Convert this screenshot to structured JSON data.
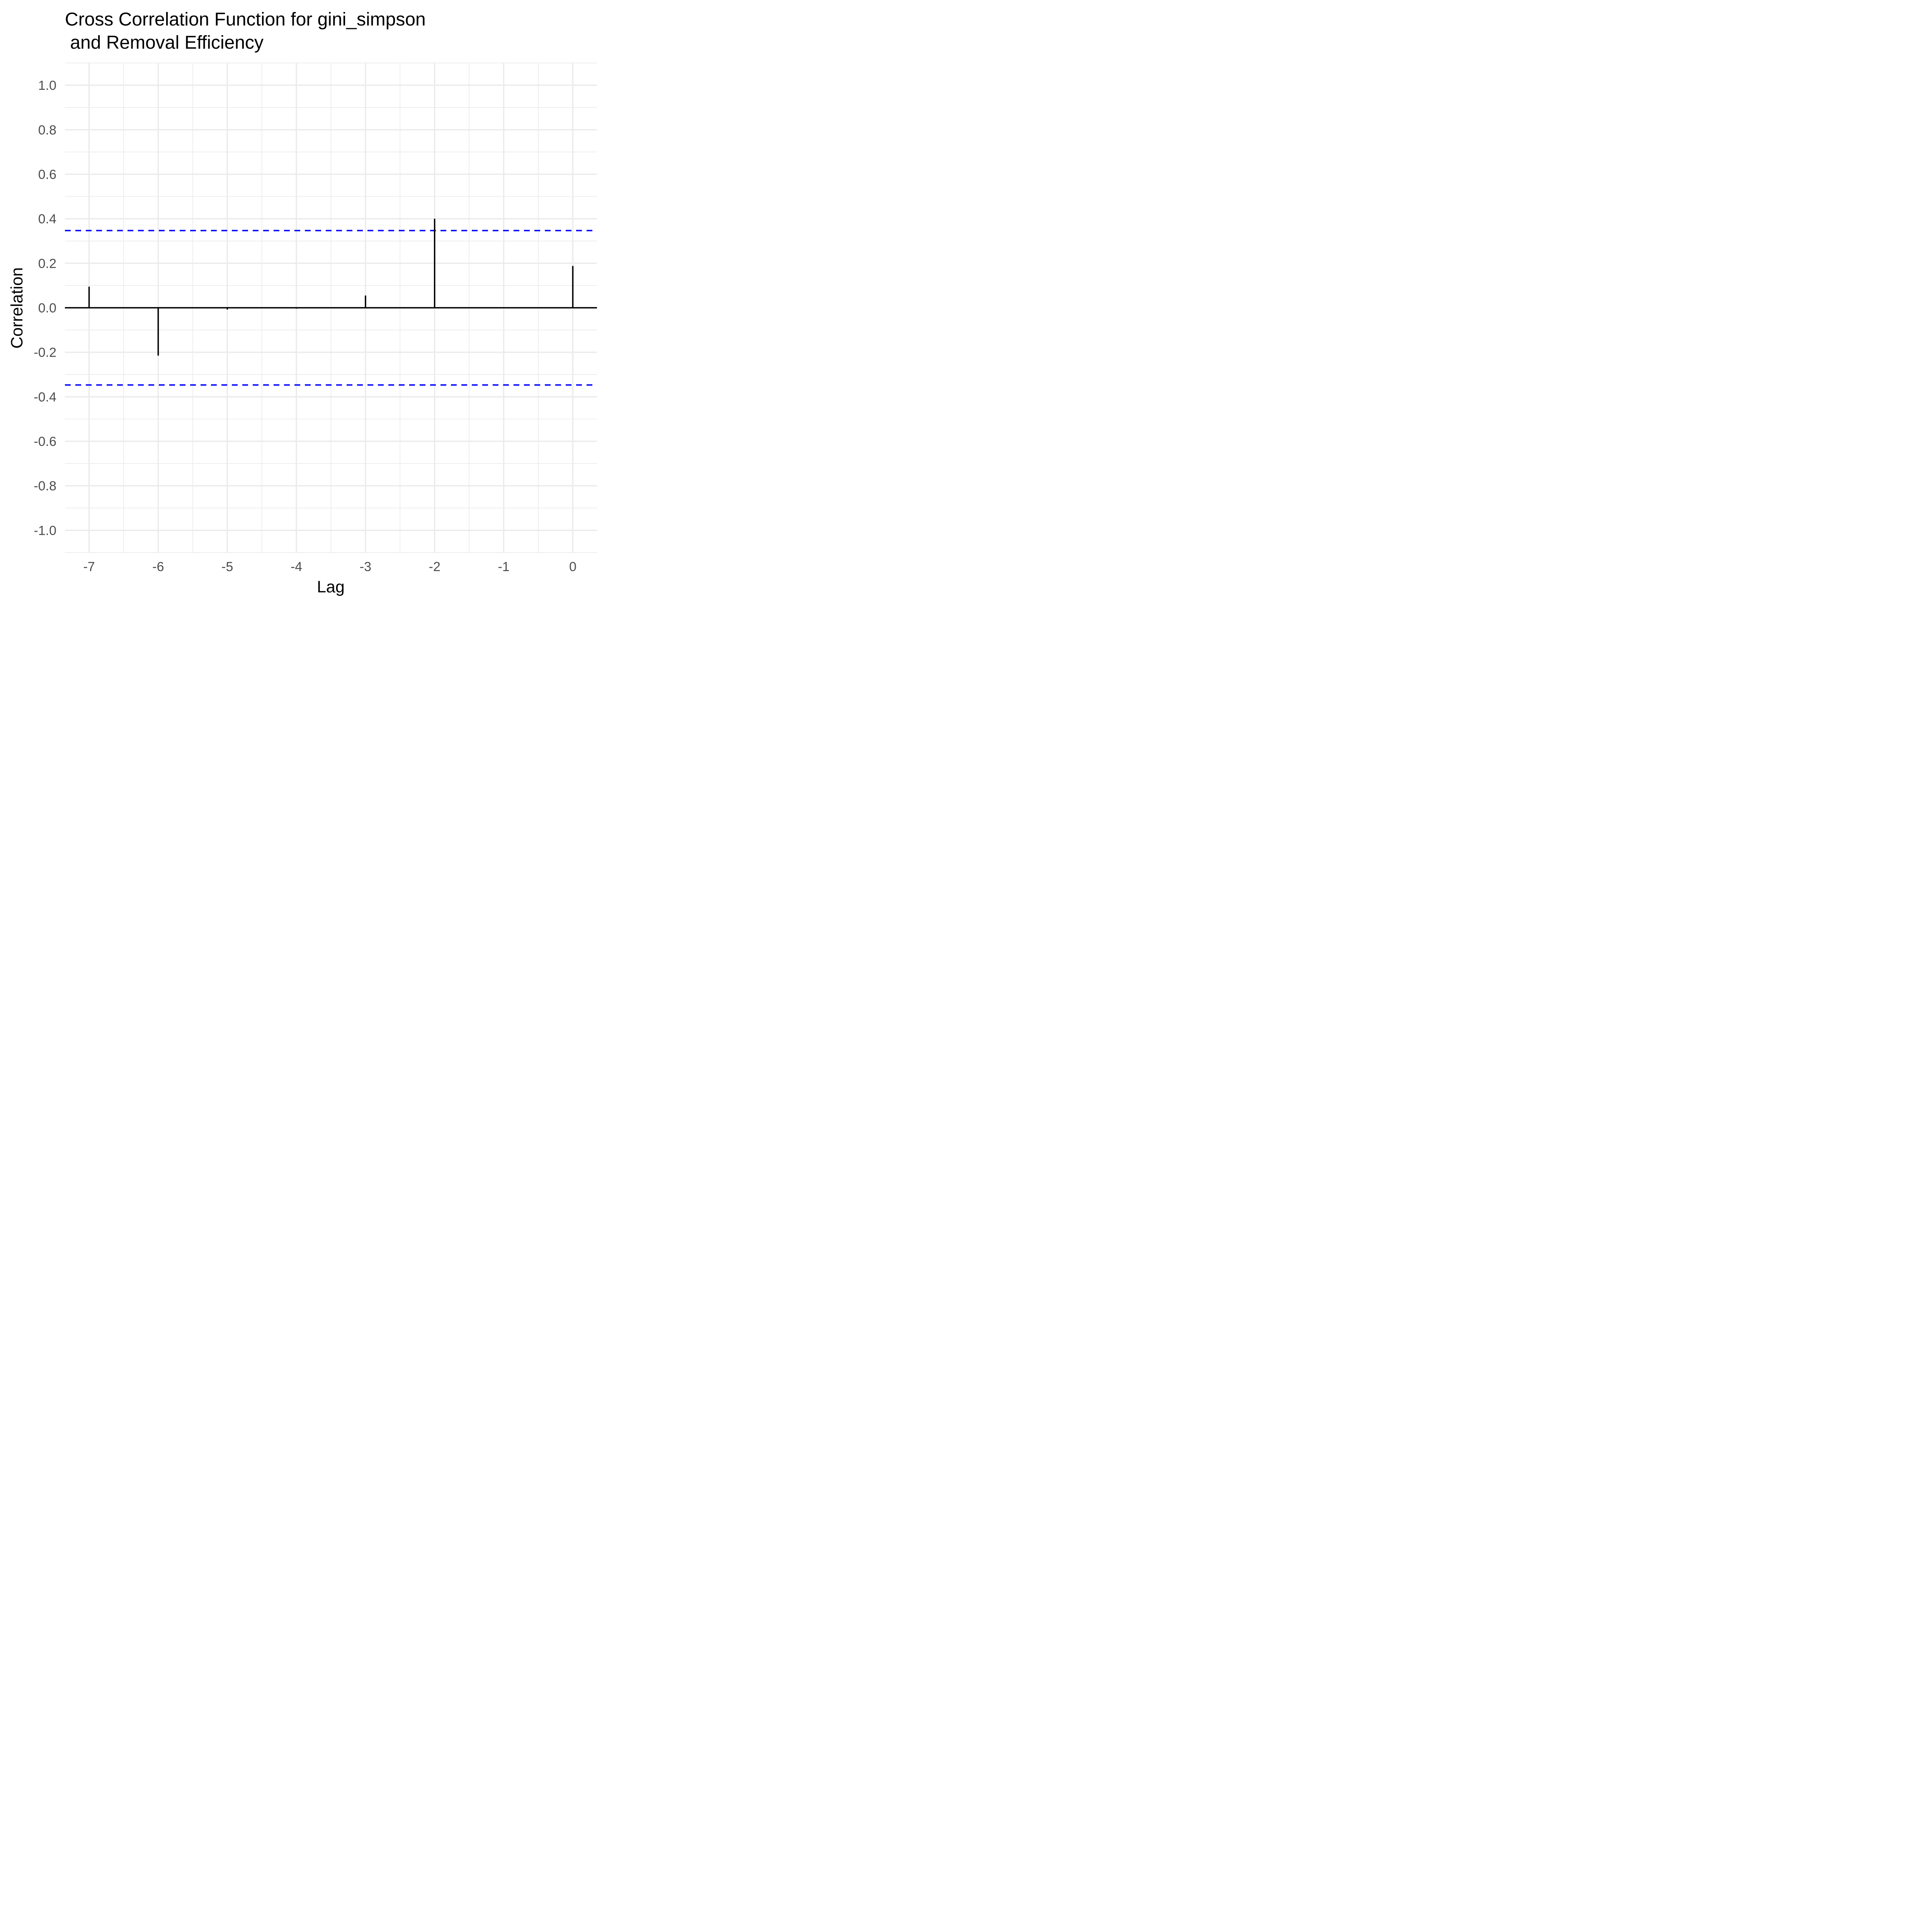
{
  "chart_data": {
    "type": "bar",
    "title_line1": "Cross Correlation Function for gini_simpson",
    "title_line2": " and Removal Efficiency",
    "xlabel": "Lag",
    "ylabel": "Correlation",
    "xlim": [
      -7.35,
      0.35
    ],
    "ylim": [
      -1.1,
      1.1
    ],
    "x_ticks": [
      -7,
      -6,
      -5,
      -4,
      -3,
      -2,
      -1,
      0
    ],
    "y_ticks": [
      1.0,
      0.8,
      0.6,
      0.4,
      0.2,
      0.0,
      -0.2,
      -0.4,
      -0.6,
      -0.8,
      -1.0
    ],
    "y_tick_labels": [
      "1.0",
      "0.8",
      "0.6",
      "0.4",
      "0.2",
      "0.0",
      "-0.2",
      "-0.4",
      "-0.6",
      "-0.8",
      "-1.0"
    ],
    "lags": [
      -7,
      -6,
      -5,
      -4,
      -3,
      -2,
      0
    ],
    "values": [
      0.095,
      -0.215,
      -0.008,
      -0.004,
      0.055,
      0.4,
      0.188
    ],
    "confidence_bounds": [
      0.347,
      -0.347
    ],
    "grid": true,
    "colors": {
      "bars": "#000000",
      "confidence": "#0000ff",
      "grid": "#ebebeb"
    }
  }
}
